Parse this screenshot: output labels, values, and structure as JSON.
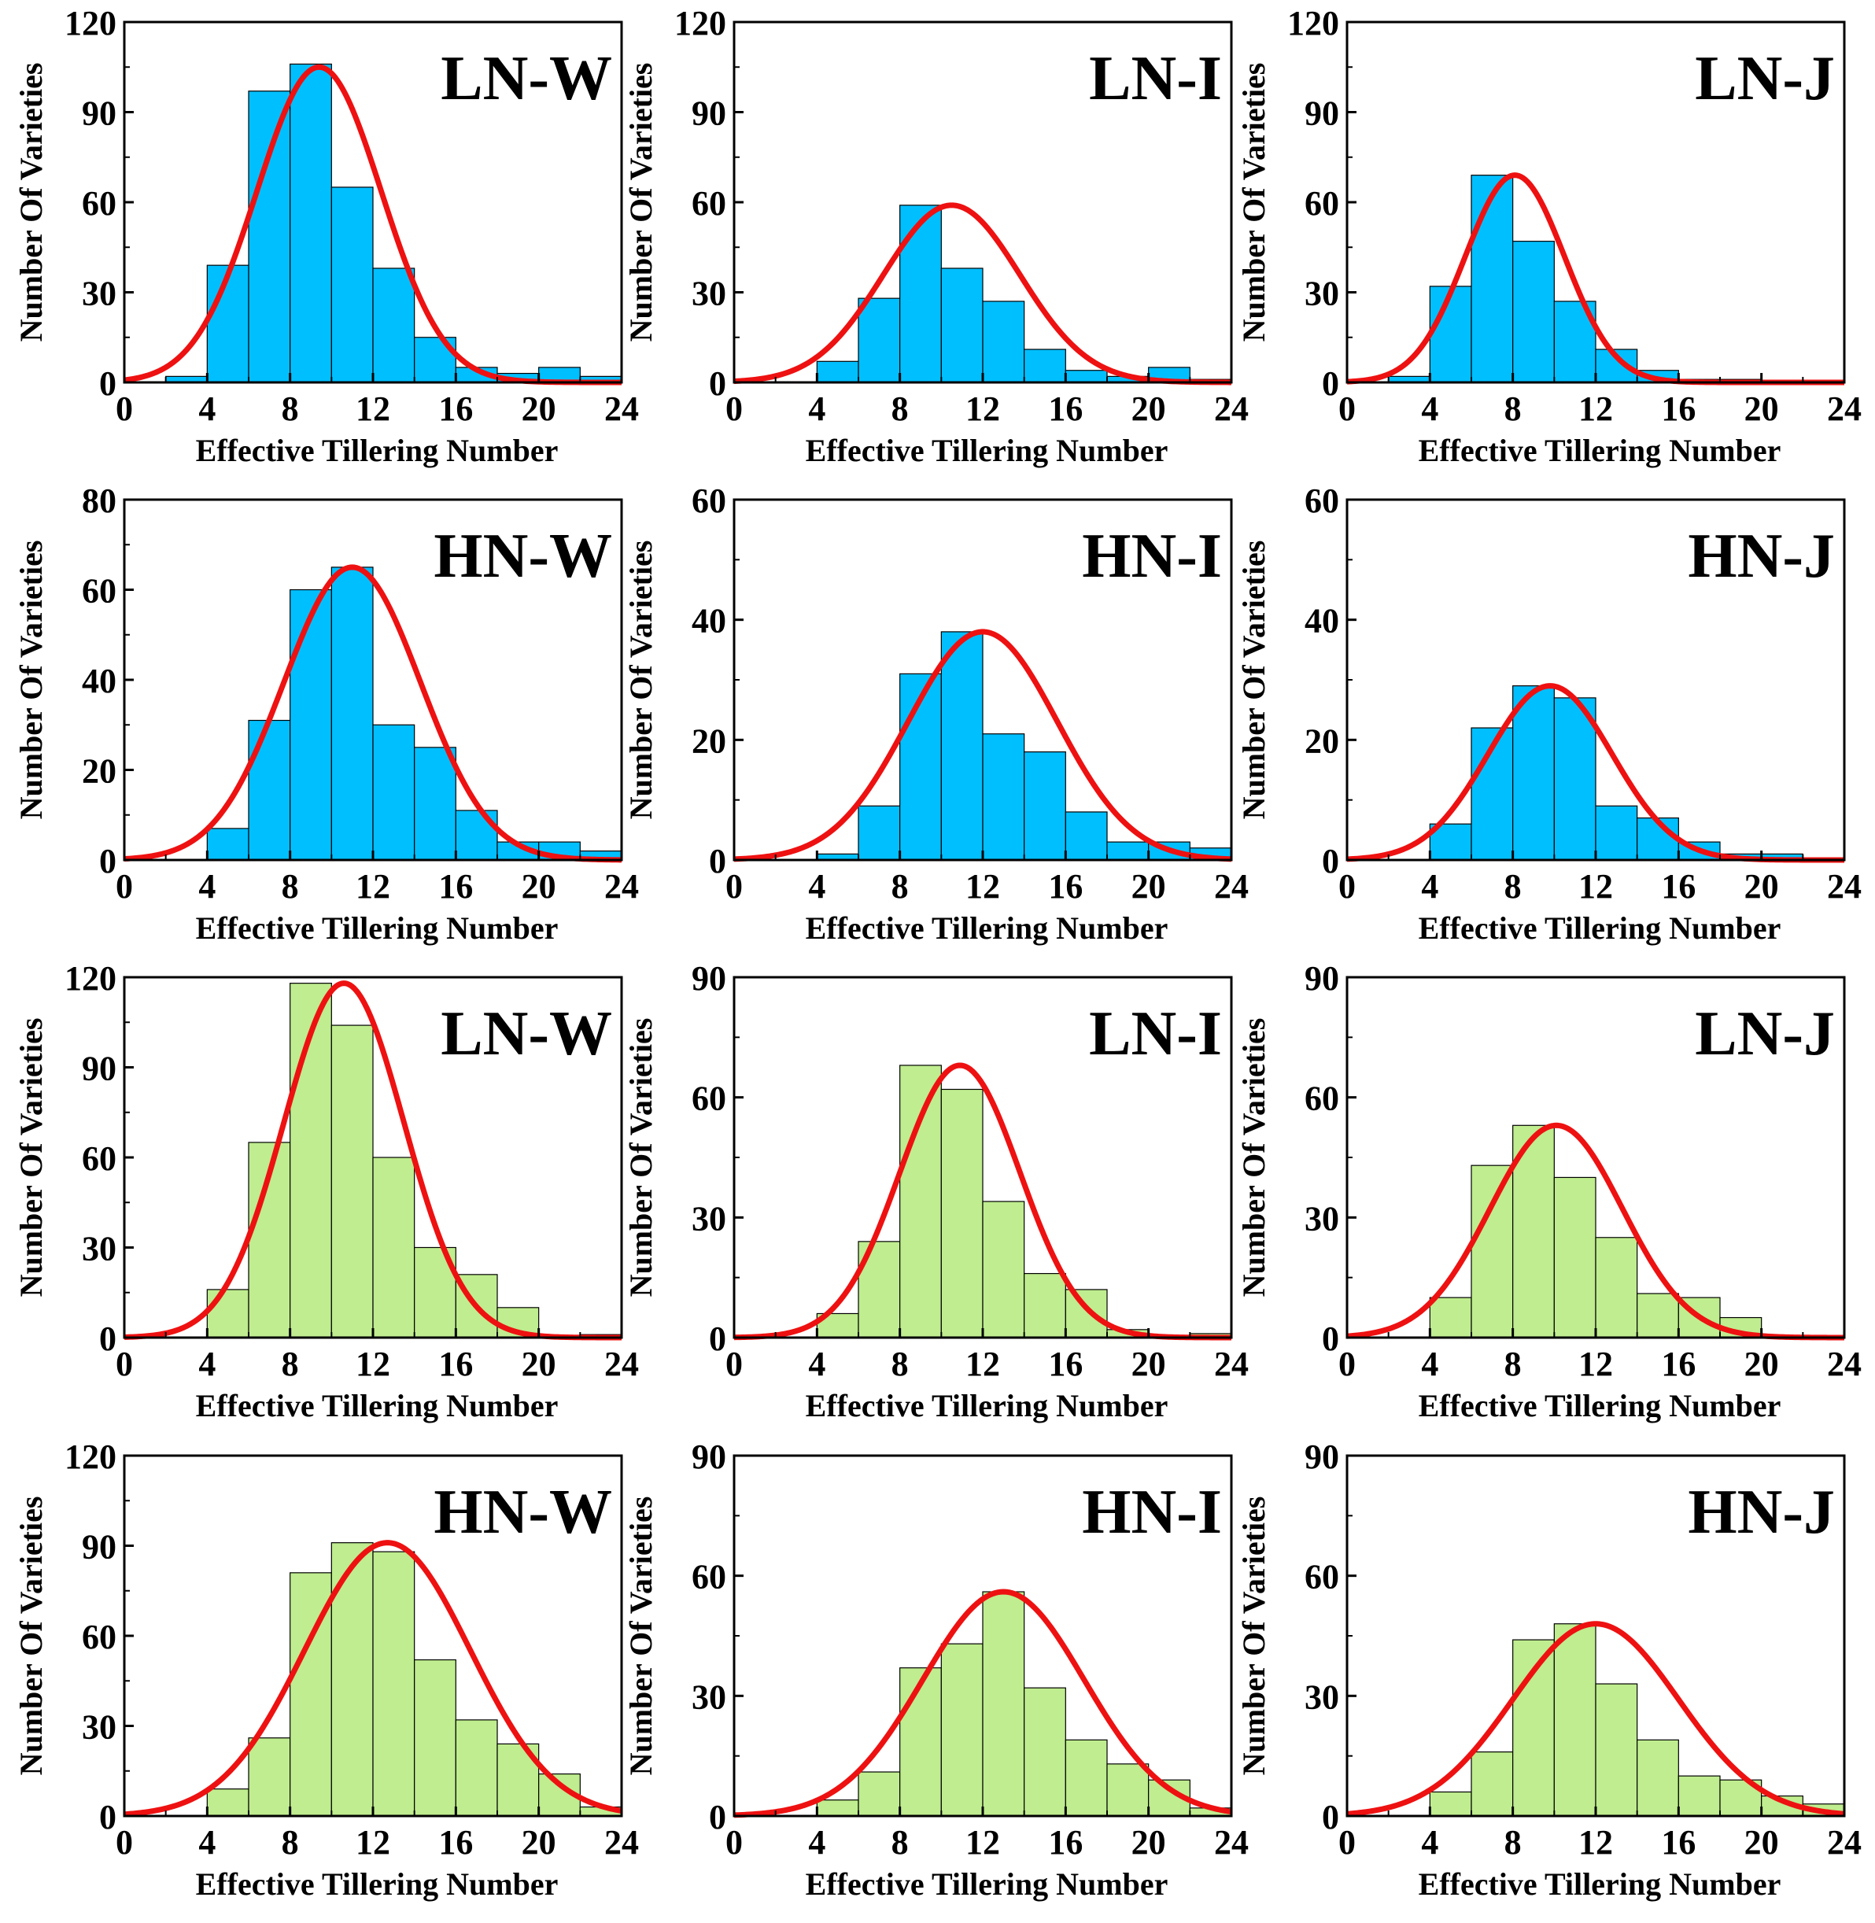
{
  "colors": {
    "blue_bar": "#00bfff",
    "green_bar": "#bfed8f",
    "fit_curve": "#ee1111",
    "axis": "#000000"
  },
  "chart_data": [
    {
      "id": "r1c1",
      "type": "bar",
      "title": "LN-W",
      "xlabel": "Effective Tillering Number",
      "ylabel": "Number Of Varieties",
      "xlim": [
        0,
        24
      ],
      "ylim": [
        0,
        120
      ],
      "xticks": [
        0,
        4,
        8,
        12,
        16,
        20,
        24
      ],
      "yticks": [
        0,
        30,
        60,
        90,
        120
      ],
      "bin_edges": [
        0,
        2,
        4,
        6,
        8,
        10,
        12,
        14,
        16,
        18,
        20,
        22,
        24
      ],
      "values": [
        0,
        2,
        39,
        97,
        106,
        65,
        38,
        15,
        5,
        3,
        5,
        2
      ],
      "fit": {
        "mean": 9.4,
        "sd": 3.0,
        "peak": 105
      },
      "color": "blue"
    },
    {
      "id": "r1c2",
      "type": "bar",
      "title": "LN-I",
      "xlabel": "Effective Tillering Number",
      "ylabel": "Number Of Varieties",
      "xlim": [
        0,
        24
      ],
      "ylim": [
        0,
        120
      ],
      "xticks": [
        0,
        4,
        8,
        12,
        16,
        20,
        24
      ],
      "yticks": [
        0,
        30,
        60,
        90,
        120
      ],
      "bin_edges": [
        0,
        2,
        4,
        6,
        8,
        10,
        12,
        14,
        16,
        18,
        20,
        22,
        24
      ],
      "values": [
        0,
        0,
        7,
        28,
        59,
        38,
        27,
        11,
        4,
        2,
        5,
        1
      ],
      "fit": {
        "mean": 10.5,
        "sd": 3.3,
        "peak": 59
      },
      "color": "blue"
    },
    {
      "id": "r1c3",
      "type": "bar",
      "title": "LN-J",
      "xlabel": "Effective Tillering Number",
      "ylabel": "Number Of Varieties",
      "xlim": [
        0,
        24
      ],
      "ylim": [
        0,
        120
      ],
      "xticks": [
        0,
        4,
        8,
        12,
        16,
        20,
        24
      ],
      "yticks": [
        0,
        30,
        60,
        90,
        120
      ],
      "bin_edges": [
        0,
        2,
        4,
        6,
        8,
        10,
        12,
        14,
        16,
        18,
        20,
        22,
        24
      ],
      "values": [
        0,
        2,
        32,
        69,
        47,
        27,
        11,
        4,
        1,
        1,
        0,
        0
      ],
      "fit": {
        "mean": 8.1,
        "sd": 2.4,
        "peak": 69
      },
      "color": "blue"
    },
    {
      "id": "r2c1",
      "type": "bar",
      "title": "HN-W",
      "xlabel": "Effective Tillering Number",
      "ylabel": "Number Of Varieties",
      "xlim": [
        0,
        24
      ],
      "ylim": [
        0,
        80
      ],
      "xticks": [
        0,
        4,
        8,
        12,
        16,
        20,
        24
      ],
      "yticks": [
        0,
        20,
        40,
        60,
        80
      ],
      "bin_edges": [
        0,
        2,
        4,
        6,
        8,
        10,
        12,
        14,
        16,
        18,
        20,
        22,
        24
      ],
      "values": [
        0,
        0,
        7,
        31,
        60,
        65,
        30,
        25,
        11,
        4,
        4,
        2
      ],
      "fit": {
        "mean": 11.0,
        "sd": 3.3,
        "peak": 65
      },
      "color": "blue"
    },
    {
      "id": "r2c2",
      "type": "bar",
      "title": "HN-I",
      "xlabel": "Effective Tillering Number",
      "ylabel": "Number Of Varieties",
      "xlim": [
        0,
        24
      ],
      "ylim": [
        0,
        60
      ],
      "xticks": [
        0,
        4,
        8,
        12,
        16,
        20,
        24
      ],
      "yticks": [
        0,
        20,
        40,
        60
      ],
      "bin_edges": [
        0,
        2,
        4,
        6,
        8,
        10,
        12,
        14,
        16,
        18,
        20,
        22,
        24
      ],
      "values": [
        0,
        0,
        1,
        9,
        31,
        38,
        21,
        18,
        8,
        3,
        3,
        2
      ],
      "fit": {
        "mean": 12.0,
        "sd": 3.6,
        "peak": 38
      },
      "color": "blue"
    },
    {
      "id": "r2c3",
      "type": "bar",
      "title": "HN-J",
      "xlabel": "Effective Tillering Number",
      "ylabel": "Number Of Varieties",
      "xlim": [
        0,
        24
      ],
      "ylim": [
        0,
        60
      ],
      "xticks": [
        0,
        4,
        8,
        12,
        16,
        20,
        24
      ],
      "yticks": [
        0,
        20,
        40,
        60
      ],
      "bin_edges": [
        0,
        2,
        4,
        6,
        8,
        10,
        12,
        14,
        16,
        18,
        20,
        22,
        24
      ],
      "values": [
        0,
        0,
        6,
        22,
        29,
        27,
        9,
        7,
        3,
        1,
        1,
        0
      ],
      "fit": {
        "mean": 9.8,
        "sd": 3.0,
        "peak": 29
      },
      "color": "blue"
    },
    {
      "id": "r3c1",
      "type": "bar",
      "title": "LN-W",
      "xlabel": "Effective Tillering Number",
      "ylabel": "Number Of Varieties",
      "xlim": [
        0,
        24
      ],
      "ylim": [
        0,
        120
      ],
      "xticks": [
        0,
        4,
        8,
        12,
        16,
        20,
        24
      ],
      "yticks": [
        0,
        30,
        60,
        90,
        120
      ],
      "bin_edges": [
        0,
        2,
        4,
        6,
        8,
        10,
        12,
        14,
        16,
        18,
        20,
        22,
        24
      ],
      "values": [
        0,
        0,
        16,
        65,
        118,
        104,
        60,
        30,
        21,
        10,
        0,
        1
      ],
      "fit": {
        "mean": 10.6,
        "sd": 2.9,
        "peak": 118
      },
      "color": "green"
    },
    {
      "id": "r3c2",
      "type": "bar",
      "title": "LN-I",
      "xlabel": "Effective Tillering Number",
      "ylabel": "Number Of Varieties",
      "xlim": [
        0,
        24
      ],
      "ylim": [
        0,
        90
      ],
      "xticks": [
        0,
        4,
        8,
        12,
        16,
        20,
        24
      ],
      "yticks": [
        0,
        30,
        60,
        90
      ],
      "bin_edges": [
        0,
        2,
        4,
        6,
        8,
        10,
        12,
        14,
        16,
        18,
        20,
        22,
        24
      ],
      "values": [
        0,
        0,
        6,
        24,
        68,
        62,
        34,
        16,
        12,
        2,
        0,
        1
      ],
      "fit": {
        "mean": 10.9,
        "sd": 2.9,
        "peak": 68
      },
      "color": "green"
    },
    {
      "id": "r3c3",
      "type": "bar",
      "title": "LN-J",
      "xlabel": "Effective Tillering Number",
      "ylabel": "Number Of Varieties",
      "xlim": [
        0,
        24
      ],
      "ylim": [
        0,
        90
      ],
      "xticks": [
        0,
        4,
        8,
        12,
        16,
        20,
        24
      ],
      "yticks": [
        0,
        30,
        60,
        90
      ],
      "bin_edges": [
        0,
        2,
        4,
        6,
        8,
        10,
        12,
        14,
        16,
        18,
        20,
        22,
        24
      ],
      "values": [
        0,
        0,
        10,
        43,
        53,
        40,
        25,
        11,
        10,
        5,
        0,
        0
      ],
      "fit": {
        "mean": 10.1,
        "sd": 3.2,
        "peak": 53
      },
      "color": "green"
    },
    {
      "id": "r4c1",
      "type": "bar",
      "title": "HN-W",
      "xlabel": "Effective Tillering Number",
      "ylabel": "Number Of Varieties",
      "xlim": [
        0,
        24
      ],
      "ylim": [
        0,
        120
      ],
      "xticks": [
        0,
        4,
        8,
        12,
        16,
        20,
        24
      ],
      "yticks": [
        0,
        30,
        60,
        90,
        120
      ],
      "bin_edges": [
        0,
        2,
        4,
        6,
        8,
        10,
        12,
        14,
        16,
        18,
        20,
        22,
        24
      ],
      "values": [
        0,
        0,
        9,
        26,
        81,
        91,
        88,
        52,
        32,
        24,
        14,
        3
      ],
      "fit": {
        "mean": 12.7,
        "sd": 4.0,
        "peak": 91
      },
      "color": "green"
    },
    {
      "id": "r4c2",
      "type": "bar",
      "title": "HN-I",
      "xlabel": "Effective Tillering Number",
      "ylabel": "Number Of Varieties",
      "xlim": [
        0,
        24
      ],
      "ylim": [
        0,
        90
      ],
      "xticks": [
        0,
        4,
        8,
        12,
        16,
        20,
        24
      ],
      "yticks": [
        0,
        30,
        60,
        90
      ],
      "bin_edges": [
        0,
        2,
        4,
        6,
        8,
        10,
        12,
        14,
        16,
        18,
        20,
        22,
        24
      ],
      "values": [
        0,
        0,
        4,
        11,
        37,
        43,
        56,
        32,
        19,
        13,
        9,
        2
      ],
      "fit": {
        "mean": 13.0,
        "sd": 3.9,
        "peak": 56
      },
      "color": "green"
    },
    {
      "id": "r4c3",
      "type": "bar",
      "title": "HN-J",
      "xlabel": "Effective Tillering Number",
      "ylabel": "Number Of Varieties",
      "xlim": [
        0,
        24
      ],
      "ylim": [
        0,
        90
      ],
      "xticks": [
        0,
        4,
        8,
        12,
        16,
        20,
        24
      ],
      "yticks": [
        0,
        30,
        60,
        90
      ],
      "bin_edges": [
        0,
        2,
        4,
        6,
        8,
        10,
        12,
        14,
        16,
        18,
        20,
        22,
        24
      ],
      "values": [
        0,
        0,
        6,
        16,
        44,
        48,
        33,
        19,
        10,
        9,
        5,
        3
      ],
      "fit": {
        "mean": 12.0,
        "sd": 4.0,
        "peak": 48
      },
      "color": "green"
    }
  ]
}
